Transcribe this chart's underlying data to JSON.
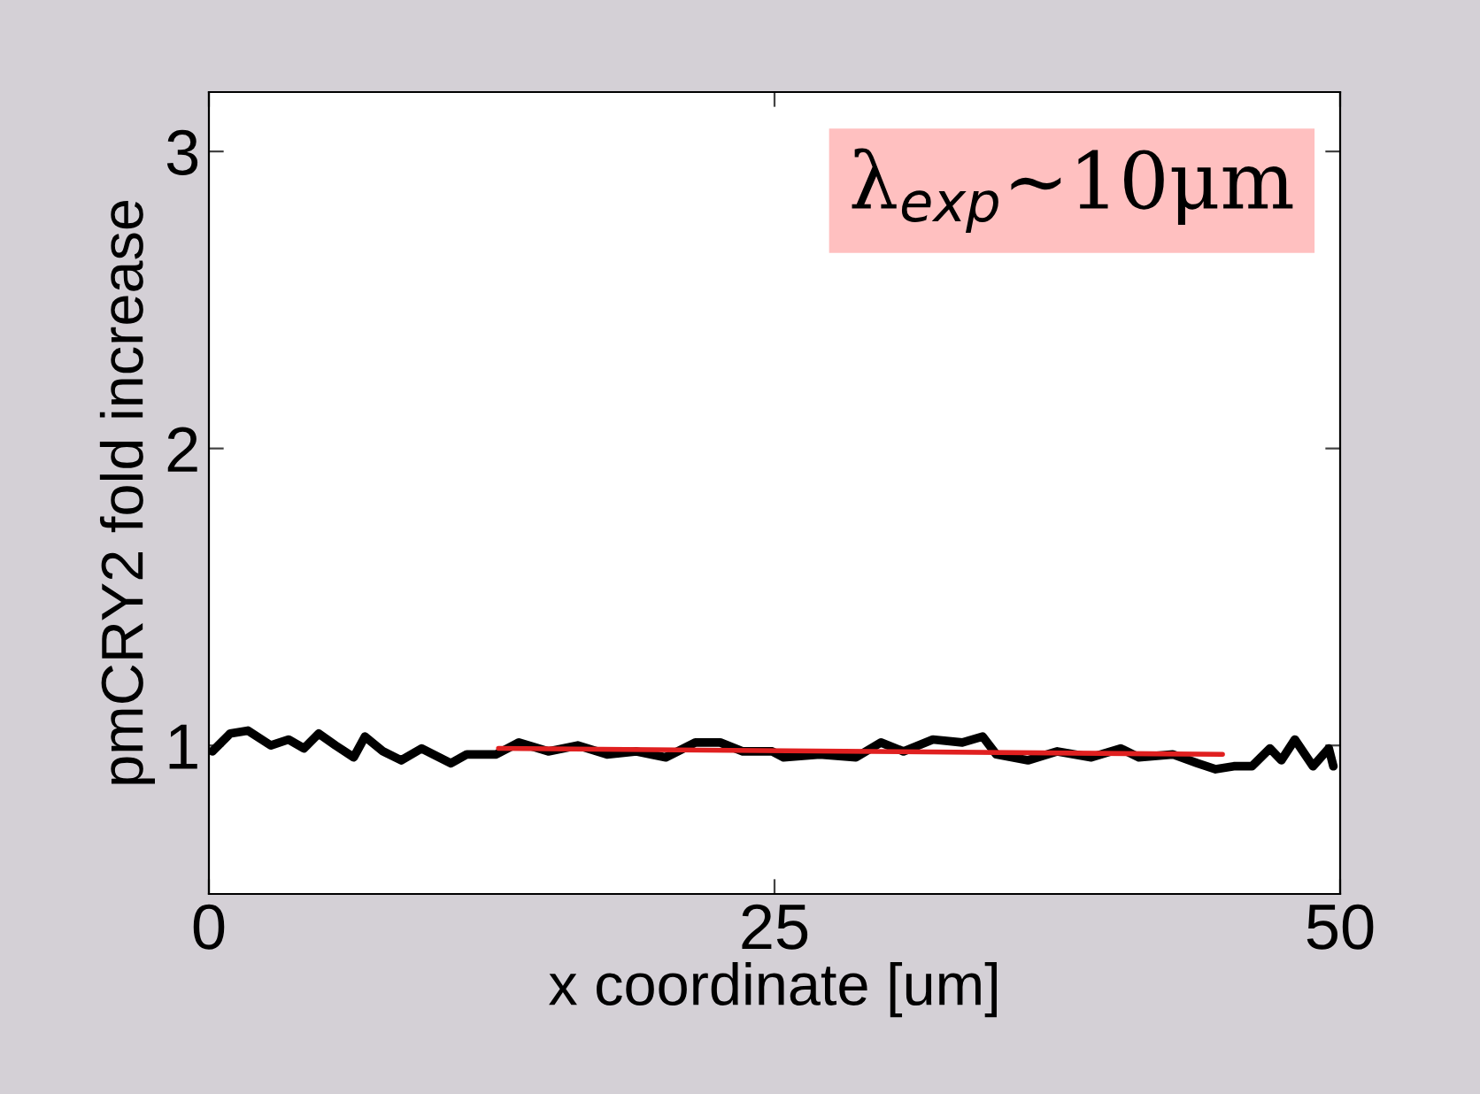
{
  "chart_data": {
    "type": "line",
    "xlabel": "x coordinate [um]",
    "ylabel": "pmCRY2 fold increase",
    "annotations": [
      "λ$_{exp}$~10μm"
    ],
    "xlim": [
      0,
      50
    ],
    "ylim": [
      0.5,
      3.2
    ],
    "xticks": [
      0,
      25,
      50
    ],
    "yticks": [
      1,
      2,
      3
    ],
    "grid": false,
    "legend": false,
    "marker": "none",
    "line_style": "solid",
    "series": [
      {
        "color": "#000000",
        "x": [
          0.15,
          0.94,
          1.72,
          2.74,
          3.52,
          4.2,
          4.85,
          5.6,
          6.4,
          6.9,
          7.7,
          8.5,
          9.4,
          10.7,
          11.4,
          12.7,
          13.7,
          15,
          16.3,
          17.6,
          18.9,
          20.2,
          21.5,
          22.6,
          23.6,
          24.9,
          25.4,
          27,
          28.6,
          29.7,
          30.7,
          32,
          33.3,
          34.2,
          34.8,
          36.2,
          37.5,
          39,
          40.3,
          41.1,
          42.6,
          43.7,
          44.5,
          45.3,
          46.1,
          46.9,
          47.4,
          48,
          48.8,
          49.5,
          49.7
        ],
        "values": [
          0.98,
          1.04,
          1.05,
          1.0,
          1.02,
          0.99,
          1.04,
          1.0,
          0.96,
          1.03,
          0.98,
          0.95,
          0.99,
          0.94,
          0.97,
          0.97,
          1.01,
          0.98,
          1.0,
          0.97,
          0.98,
          0.96,
          1.01,
          1.01,
          0.98,
          0.98,
          0.96,
          0.97,
          0.96,
          1.01,
          0.98,
          1.02,
          1.01,
          1.03,
          0.97,
          0.95,
          0.98,
          0.96,
          0.99,
          0.96,
          0.97,
          0.94,
          0.92,
          0.93,
          0.93,
          0.99,
          0.95,
          1.02,
          0.93,
          0.99,
          0.93
        ]
      },
      {
        "color": "#e02020",
        "x": [
          12.8,
          44.8
        ],
        "values": [
          0.99,
          0.97
        ]
      }
    ]
  }
}
